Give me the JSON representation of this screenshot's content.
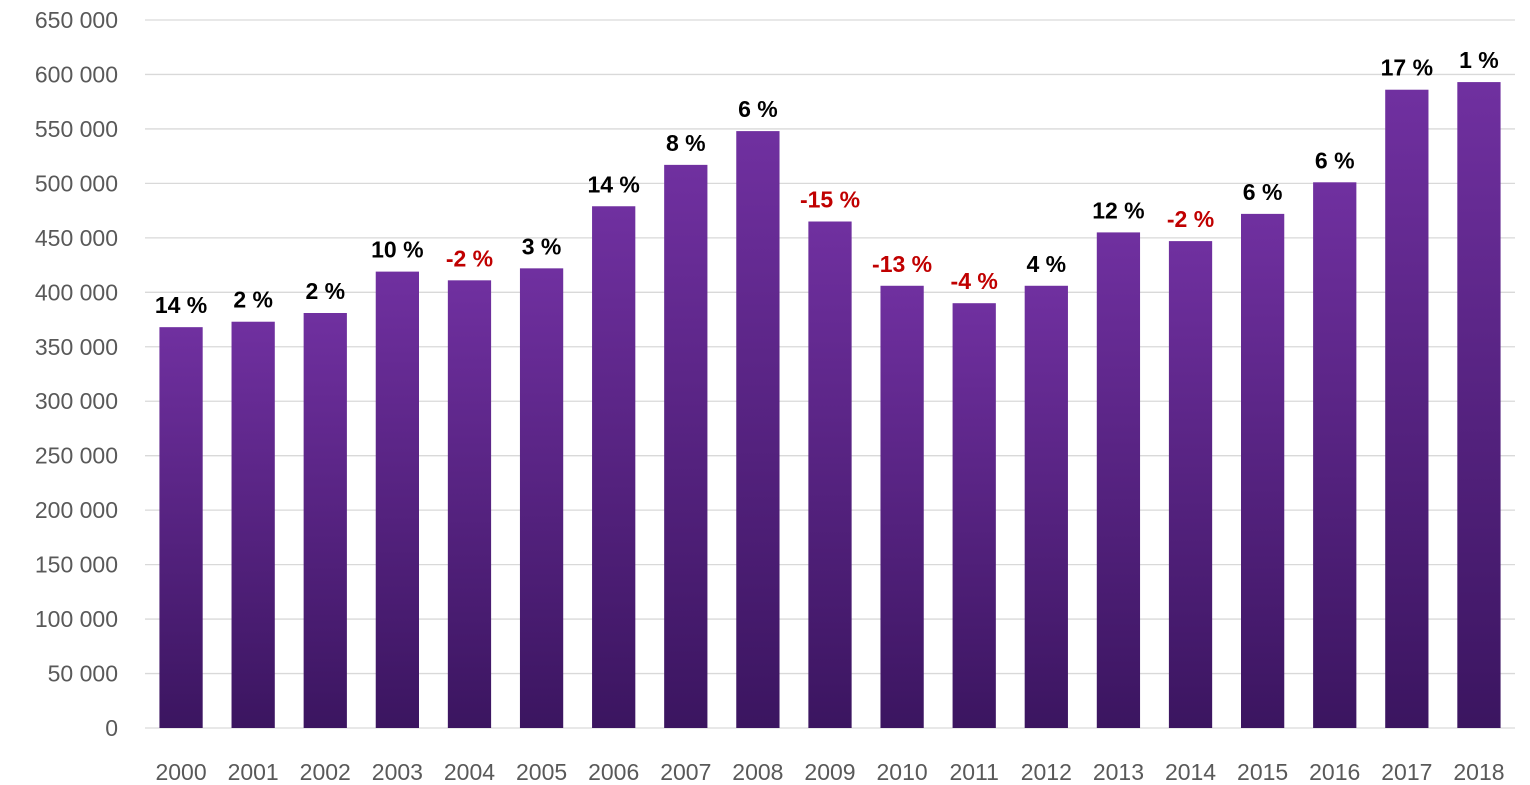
{
  "chart_data": {
    "type": "bar",
    "title": "",
    "xlabel": "",
    "ylabel": "",
    "categories": [
      "2000",
      "2001",
      "2002",
      "2003",
      "2004",
      "2005",
      "2006",
      "2007",
      "2008",
      "2009",
      "2010",
      "2011",
      "2012",
      "2013",
      "2014",
      "2015",
      "2016",
      "2017",
      "2018"
    ],
    "values": [
      368000,
      373000,
      381000,
      419000,
      411000,
      422000,
      479000,
      517000,
      548000,
      465000,
      406000,
      390000,
      406000,
      455000,
      447000,
      472000,
      501000,
      586000,
      593000
    ],
    "data_labels": [
      "14 %",
      "2 %",
      "2 %",
      "10 %",
      "-2 %",
      "3 %",
      "14 %",
      "8 %",
      "6 %",
      "-15 %",
      "-13 %",
      "-4 %",
      "4 %",
      "12 %",
      "-2 %",
      "6 %",
      "6 %",
      "17 %",
      "1 %"
    ],
    "y_ticks": [
      "0",
      "50 000",
      "100 000",
      "150 000",
      "200 000",
      "250 000",
      "300 000",
      "350 000",
      "400 000",
      "450 000",
      "500 000",
      "550 000",
      "600 000",
      "650 000"
    ],
    "ylim": [
      0,
      650000
    ],
    "grid": true,
    "legend": "none",
    "colors": {
      "bar_top": "#7030a0",
      "bar_bottom": "#3b1560",
      "label_positive": "#000000",
      "label_negative": "#c00000",
      "gridline": "#d9d9d9",
      "tick_text": "#595959"
    }
  }
}
